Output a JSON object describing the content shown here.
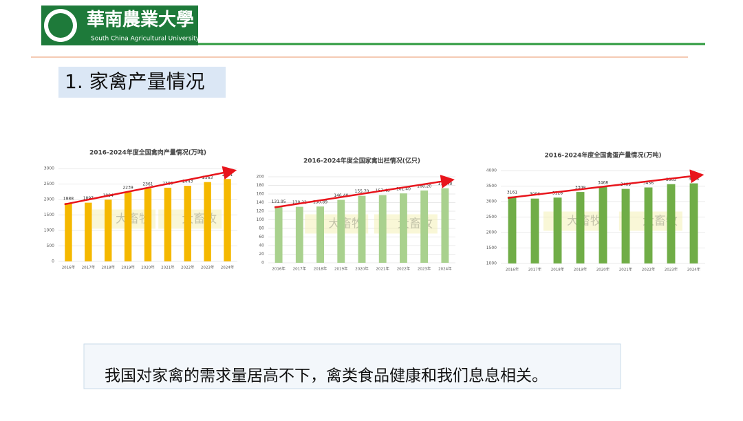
{
  "header": {
    "logo_title": "華南農業大學",
    "logo_subtitle": "South China Agricultural University",
    "section_title": "1. 家禽产量情况"
  },
  "watermark": "大畜牧",
  "caption": "我国对家禽的需求量居高不下，禽类食品健康和我们息息相关。",
  "chart_data": [
    {
      "type": "bar",
      "title": "2016-2024年度全国禽肉产量情况(万吨)",
      "categories": [
        "2016年",
        "2017年",
        "2018年",
        "2019年",
        "2020年",
        "2021年",
        "2022年",
        "2023年",
        "2024年"
      ],
      "values": [
        1888,
        1897,
        1994,
        2239,
        2361,
        2380,
        2443,
        2563,
        2661
      ],
      "color": "#f5b800",
      "ylim": [
        0,
        3000
      ],
      "yticks": [
        0,
        500,
        1000,
        1500,
        2000,
        2500,
        3000
      ],
      "grid": true
    },
    {
      "type": "bar",
      "title": "2016-2024年度全国家禽出栏情况(亿只)",
      "categories": [
        "2016年",
        "2017年",
        "2018年",
        "2019年",
        "2020年",
        "2021年",
        "2022年",
        "2023年",
        "2024年"
      ],
      "values": [
        131.95,
        130.22,
        130.89,
        146.4,
        155.7,
        157.4,
        161.4,
        168.2,
        173.4
      ],
      "value_labels": [
        "131.95",
        "130.22",
        "130.89",
        "146.40",
        "155.70",
        "157.40",
        "161.40",
        "168.20",
        "173.40"
      ],
      "color": "#a9d18e",
      "ylim": [
        0,
        200
      ],
      "yticks": [
        0,
        20,
        40,
        60,
        80,
        100,
        120,
        140,
        160,
        180,
        200
      ],
      "grid": true
    },
    {
      "type": "bar",
      "title": "2016-2024年度全国禽蛋产量情况(万吨)",
      "categories": [
        "2016年",
        "2017年",
        "2018年",
        "2019年",
        "2020年",
        "2021年",
        "2022年",
        "2023年",
        "2024年"
      ],
      "values": [
        3161,
        3096,
        3128,
        3309,
        3468,
        3409,
        3456,
        3563,
        3588
      ],
      "color": "#70ad47",
      "ylim": [
        1000,
        4000
      ],
      "yticks": [
        1000,
        1500,
        2000,
        2500,
        3000,
        3500,
        4000
      ],
      "grid": true
    }
  ]
}
